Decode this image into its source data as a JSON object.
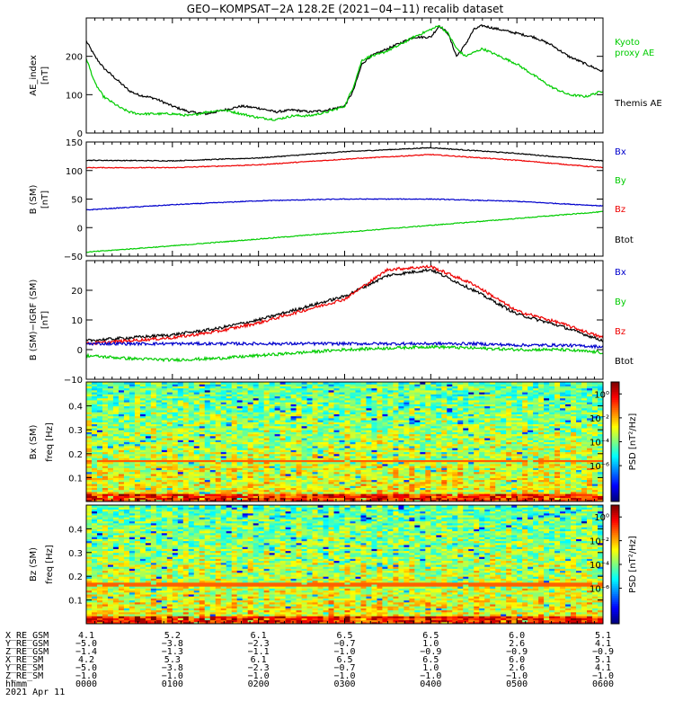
{
  "title": "GEO−KOMPSAT−2A 128.2E (2021−04−11) recalib dataset",
  "colors": {
    "black": "#000000",
    "green": "#00cc00",
    "blue": "#0000cc",
    "red": "#ee0000"
  },
  "panels": {
    "ae": {
      "ylabel1": "AE_index",
      "ylabel2": "[nT]",
      "legend": [
        {
          "name": "Kyoto",
          "color": "#00cc00"
        },
        {
          "name": "proxy AE",
          "color": "#00cc00"
        },
        {
          "name": "Themis AE",
          "color": "#000000"
        }
      ]
    },
    "b": {
      "ylabel1": "B (SM)",
      "ylabel2": "[nT]",
      "legend": [
        {
          "name": "Bx",
          "color": "#0000cc"
        },
        {
          "name": "By",
          "color": "#00cc00"
        },
        {
          "name": "Bz",
          "color": "#ee0000"
        },
        {
          "name": "Btot",
          "color": "#000000"
        }
      ]
    },
    "db": {
      "ylabel1": "B (SM)−IGRF (SM)",
      "ylabel2": "[nT]",
      "legend": [
        {
          "name": "Bx",
          "color": "#0000cc"
        },
        {
          "name": "By",
          "color": "#00cc00"
        },
        {
          "name": "Bz",
          "color": "#ee0000"
        },
        {
          "name": "Btot",
          "color": "#000000"
        }
      ]
    },
    "specx": {
      "ylabel1": "Bx (SM)",
      "ylabel2": "freq [Hz]"
    },
    "specz": {
      "ylabel1": "Bz (SM)",
      "ylabel2": "freq [Hz]"
    },
    "colorbar": {
      "label": "PSD [nT²/Hz]",
      "ticks": [
        "10⁰",
        "10⁻²",
        "10⁻⁴",
        "10⁻⁶"
      ],
      "ticks_values": [
        0,
        -2,
        -4,
        -6
      ]
    }
  },
  "footer": {
    "row_labels": [
      "X_RE_GSM",
      "Y_RE_GSM",
      "Z_RE_GSM",
      "X_RE_SM",
      "Y_RE_SM",
      "Z_RE_SM",
      "hhmm",
      "2021 Apr 11"
    ],
    "columns": [
      [
        "4.1",
        "−5.0",
        "−1.4",
        "4.2",
        "−5.0",
        "−1.0",
        "0000"
      ],
      [
        "5.2",
        "−3.8",
        "−1.3",
        "5.3",
        "−3.8",
        "−1.0",
        "0100"
      ],
      [
        "6.1",
        "−2.3",
        "−1.1",
        "6.1",
        "−2.3",
        "−1.0",
        "0200"
      ],
      [
        "6.5",
        "−0.7",
        "−1.0",
        "6.5",
        "−0.7",
        "−1.0",
        "0300"
      ],
      [
        "6.5",
        "1.0",
        "−0.9",
        "6.5",
        "1.0",
        "−1.0",
        "0400"
      ],
      [
        "6.0",
        "2.6",
        "−0.9",
        "6.0",
        "2.6",
        "−1.0",
        "0500"
      ],
      [
        "5.1",
        "4.1",
        "−0.9",
        "5.1",
        "4.1",
        "−1.0",
        "0600"
      ]
    ]
  },
  "chart_data": [
    {
      "type": "line",
      "panel": "ae",
      "xlabel": "hhmm",
      "xlim": [
        0,
        6
      ],
      "ylim": [
        0,
        300
      ],
      "yticks": [
        0,
        100,
        200
      ],
      "x": [
        0,
        0.1,
        0.2,
        0.3,
        0.4,
        0.5,
        0.6,
        0.8,
        1.0,
        1.2,
        1.4,
        1.6,
        1.8,
        2.0,
        2.2,
        2.4,
        2.6,
        2.8,
        3.0,
        3.1,
        3.2,
        3.3,
        3.4,
        3.6,
        3.8,
        4.0,
        4.1,
        4.2,
        4.3,
        4.4,
        4.5,
        4.6,
        4.8,
        5.0,
        5.2,
        5.4,
        5.6,
        5.8,
        6.0
      ],
      "series": [
        {
          "name": "Themis AE",
          "color": "#000000",
          "values": [
            240,
            200,
            170,
            150,
            130,
            110,
            100,
            90,
            70,
            55,
            50,
            60,
            70,
            65,
            55,
            60,
            55,
            60,
            70,
            110,
            180,
            200,
            210,
            230,
            250,
            250,
            280,
            260,
            200,
            230,
            270,
            280,
            270,
            260,
            250,
            230,
            200,
            180,
            160
          ]
        },
        {
          "name": "Kyoto proxy AE",
          "color": "#00cc00",
          "values": [
            195,
            130,
            95,
            80,
            65,
            55,
            50,
            50,
            50,
            45,
            55,
            60,
            50,
            40,
            35,
            45,
            45,
            55,
            70,
            120,
            190,
            200,
            205,
            225,
            250,
            270,
            280,
            260,
            220,
            200,
            210,
            220,
            200,
            180,
            150,
            120,
            100,
            95,
            110
          ]
        }
      ]
    },
    {
      "type": "line",
      "panel": "b",
      "xlim": [
        0,
        6
      ],
      "ylim": [
        -50,
        150
      ],
      "yticks": [
        -50,
        0,
        50,
        100,
        150
      ],
      "x": [
        0,
        1,
        2,
        3,
        4,
        5,
        6
      ],
      "series": [
        {
          "name": "Btot",
          "color": "#000000",
          "values": [
            118,
            117,
            122,
            133,
            140,
            130,
            117
          ]
        },
        {
          "name": "Bz",
          "color": "#ee0000",
          "values": [
            105,
            105,
            110,
            120,
            128,
            118,
            105
          ]
        },
        {
          "name": "Bx",
          "color": "#0000cc",
          "values": [
            31,
            40,
            47,
            50,
            50,
            46,
            38
          ]
        },
        {
          "name": "By",
          "color": "#00cc00",
          "values": [
            -43,
            -32,
            -20,
            -8,
            4,
            16,
            28
          ]
        }
      ]
    },
    {
      "type": "line",
      "panel": "db",
      "xlim": [
        0,
        6
      ],
      "ylim": [
        -10,
        30
      ],
      "yticks": [
        -10,
        0,
        10,
        20
      ],
      "x": [
        0,
        0.5,
        1.0,
        1.5,
        2.0,
        2.5,
        3.0,
        3.5,
        4.0,
        4.5,
        5.0,
        5.5,
        6.0
      ],
      "series": [
        {
          "name": "Btot",
          "color": "#000000",
          "values": [
            3,
            4,
            5,
            7,
            10,
            14,
            18,
            25,
            27,
            20,
            12,
            8,
            3
          ]
        },
        {
          "name": "Bz",
          "color": "#ee0000",
          "values": [
            2,
            3,
            4,
            6,
            9,
            13,
            17,
            27,
            28,
            22,
            13,
            9,
            4
          ]
        },
        {
          "name": "Bx",
          "color": "#0000cc",
          "values": [
            2,
            2,
            2,
            2,
            2,
            2,
            2,
            2,
            2,
            2,
            1.5,
            1.5,
            1
          ]
        },
        {
          "name": "By",
          "color": "#00cc00",
          "values": [
            -2,
            -3,
            -3.5,
            -3,
            -2,
            -1,
            0,
            0.5,
            1,
            0.5,
            0,
            0,
            -1
          ]
        }
      ]
    },
    {
      "type": "heatmap",
      "panel": "specx",
      "xlim": [
        0,
        6
      ],
      "ylim": [
        0,
        0.5
      ],
      "yticks": [
        0.1,
        0.2,
        0.3,
        0.4
      ],
      "zlabel": "PSD",
      "zscale": "log"
    },
    {
      "type": "heatmap",
      "panel": "specz",
      "xlim": [
        0,
        6
      ],
      "ylim": [
        0,
        0.5
      ],
      "yticks": [
        0.1,
        0.2,
        0.3,
        0.4
      ],
      "zlabel": "PSD",
      "zscale": "log"
    }
  ]
}
